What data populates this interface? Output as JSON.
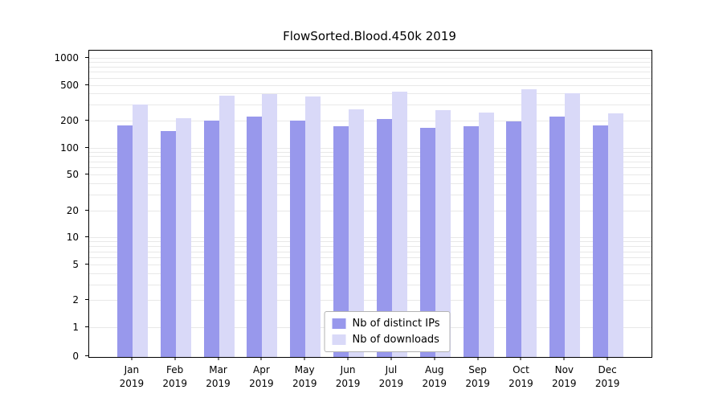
{
  "chart_data": {
    "type": "bar",
    "title": "FlowSorted.Blood.450k 2019",
    "categories": [
      "Jan",
      "Feb",
      "Mar",
      "Apr",
      "May",
      "Jun",
      "Jul",
      "Aug",
      "Sep",
      "Oct",
      "Nov",
      "Dec"
    ],
    "category_year": "2019",
    "series": [
      {
        "name": "Nb of distinct IPs",
        "color": "#9898ec",
        "values": [
          180,
          155,
          205,
          228,
          205,
          175,
          212,
          170,
          176,
          200,
          228,
          180
        ]
      },
      {
        "name": "Nb of downloads",
        "color": "#d9d9f8",
        "values": [
          310,
          215,
          390,
          400,
          378,
          270,
          432,
          266,
          252,
          455,
          408,
          245
        ]
      }
    ],
    "y_ticks": [
      0,
      1,
      2,
      5,
      10,
      20,
      50,
      100,
      200,
      500,
      1000
    ],
    "y_scale": "log",
    "ylim": [
      0,
      1000
    ],
    "grid": true,
    "gridline_color": "#e8e8e8",
    "legend_position": "bottom-center",
    "background": "#ffffff"
  }
}
